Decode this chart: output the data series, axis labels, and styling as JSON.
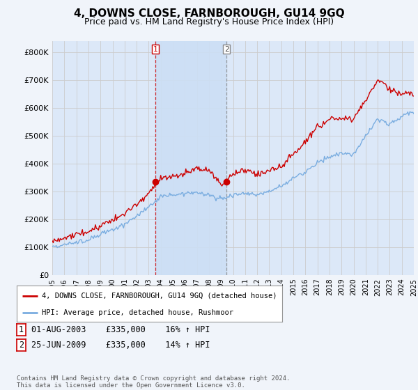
{
  "title": "4, DOWNS CLOSE, FARNBOROUGH, GU14 9GQ",
  "subtitle": "Price paid vs. HM Land Registry's House Price Index (HPI)",
  "ylabel_ticks": [
    "£0",
    "£100K",
    "£200K",
    "£300K",
    "£400K",
    "£500K",
    "£600K",
    "£700K",
    "£800K"
  ],
  "ytick_values": [
    0,
    100000,
    200000,
    300000,
    400000,
    500000,
    600000,
    700000,
    800000
  ],
  "ylim": [
    0,
    840000
  ],
  "background_color": "#f0f4fa",
  "plot_bg": "#dce8f8",
  "shade_bg": "#ccdff5",
  "grid_color": "#cccccc",
  "red_color": "#cc0000",
  "blue_color": "#7aade0",
  "sale1_year": 2003.58,
  "sale1_price": 335000,
  "sale2_year": 2009.47,
  "sale2_price": 335000,
  "legend_line1": "4, DOWNS CLOSE, FARNBOROUGH, GU14 9GQ (detached house)",
  "legend_line2": "HPI: Average price, detached house, Rushmoor",
  "table_row1": [
    "1",
    "01-AUG-2003",
    "£335,000",
    "16% ↑ HPI"
  ],
  "table_row2": [
    "2",
    "25-JUN-2009",
    "£335,000",
    "14% ↑ HPI"
  ],
  "footer": "Contains HM Land Registry data © Crown copyright and database right 2024.\nThis data is licensed under the Open Government Licence v3.0.",
  "xstart": 1995,
  "xend": 2025,
  "hpi_key_years": [
    1995,
    1996,
    1997,
    1998,
    1999,
    2000,
    2001,
    2002,
    2003,
    2004,
    2005,
    2006,
    2007,
    2008,
    2009,
    2010,
    2011,
    2012,
    2013,
    2014,
    2015,
    2016,
    2017,
    2018,
    2019,
    2020,
    2021,
    2022,
    2023,
    2024,
    2025
  ],
  "hpi_key_vals": [
    103000,
    110000,
    120000,
    133000,
    150000,
    168000,
    190000,
    215000,
    248000,
    278000,
    285000,
    290000,
    305000,
    295000,
    280000,
    295000,
    300000,
    298000,
    310000,
    330000,
    355000,
    380000,
    410000,
    430000,
    450000,
    440000,
    510000,
    570000,
    555000,
    585000,
    600000
  ],
  "price_key_years": [
    1995,
    1996,
    1997,
    1998,
    1999,
    2000,
    2001,
    2002,
    2003,
    2004,
    2005,
    2006,
    2007,
    2008,
    2009,
    2010,
    2011,
    2012,
    2013,
    2014,
    2015,
    2016,
    2017,
    2018,
    2019,
    2020,
    2021,
    2022,
    2023,
    2024,
    2025
  ],
  "price_key_vals": [
    123000,
    133000,
    148000,
    165000,
    185000,
    205000,
    230000,
    260000,
    295000,
    345000,
    350000,
    360000,
    390000,
    385000,
    330000,
    370000,
    385000,
    375000,
    390000,
    400000,
    445000,
    490000,
    540000,
    570000,
    580000,
    570000,
    640000,
    715000,
    685000,
    670000,
    670000
  ]
}
